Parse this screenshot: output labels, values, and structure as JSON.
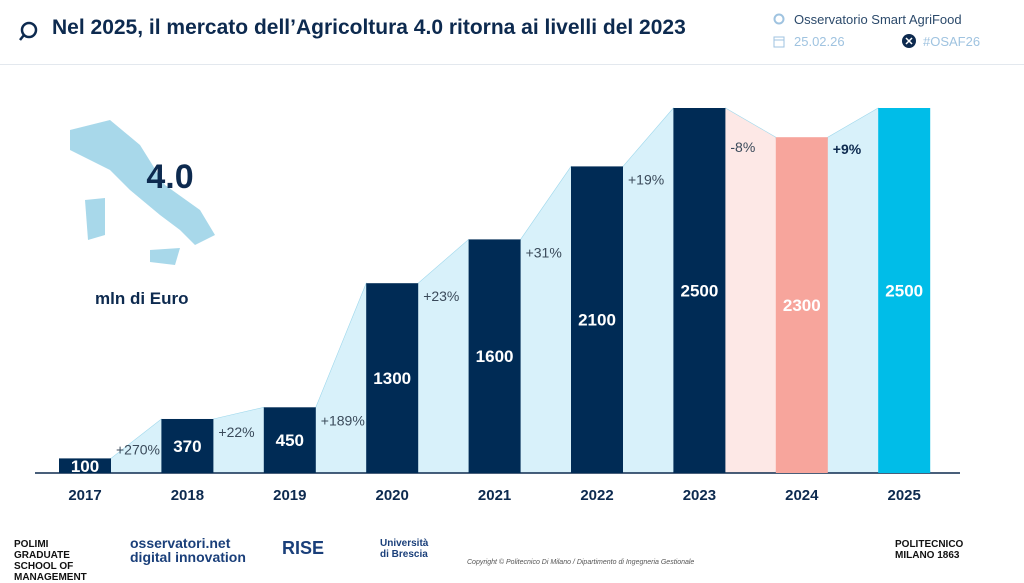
{
  "header": {
    "title": "Nel 2025, il mercato dell’Agricoltura 4.0 ritorna ai livelli del 2023",
    "observatory": "Osservatorio Smart AgriFood",
    "date": "25.02.26",
    "hashtag": "#OSAF26"
  },
  "badge": "4.0",
  "unit": "mln di Euro",
  "footer": {
    "copyright": "Copyright © Politecnico Di Milano / Dipartimento di Ingegneria Gestionale",
    "logos": [
      "POLIMI GRADUATE SCHOOL OF MANAGEMENT",
      "osservatori.net digital innovation",
      "RISE",
      "Università di Brescia",
      "POLITECNICO MILANO 1863"
    ]
  },
  "chart_data": {
    "type": "bar",
    "categories": [
      "2017",
      "2018",
      "2019",
      "2020",
      "2021",
      "2022",
      "2023",
      "2024",
      "2025"
    ],
    "values": [
      100,
      370,
      450,
      1300,
      1600,
      2100,
      2500,
      2300,
      2500
    ],
    "growth_labels": [
      "+270%",
      "+22%",
      "+189%",
      "+23%",
      "+31%",
      "+19%",
      "-8%",
      "+9%"
    ],
    "colors": {
      "bar": "#002b55",
      "bar_2024": "#f7a59c",
      "bar_2025": "#00bde8",
      "area": "#d8f1fa",
      "area_decline": "#fde8e6"
    },
    "xlabel": "",
    "ylabel": "mln di Euro",
    "ylim": [
      0,
      2500
    ]
  }
}
